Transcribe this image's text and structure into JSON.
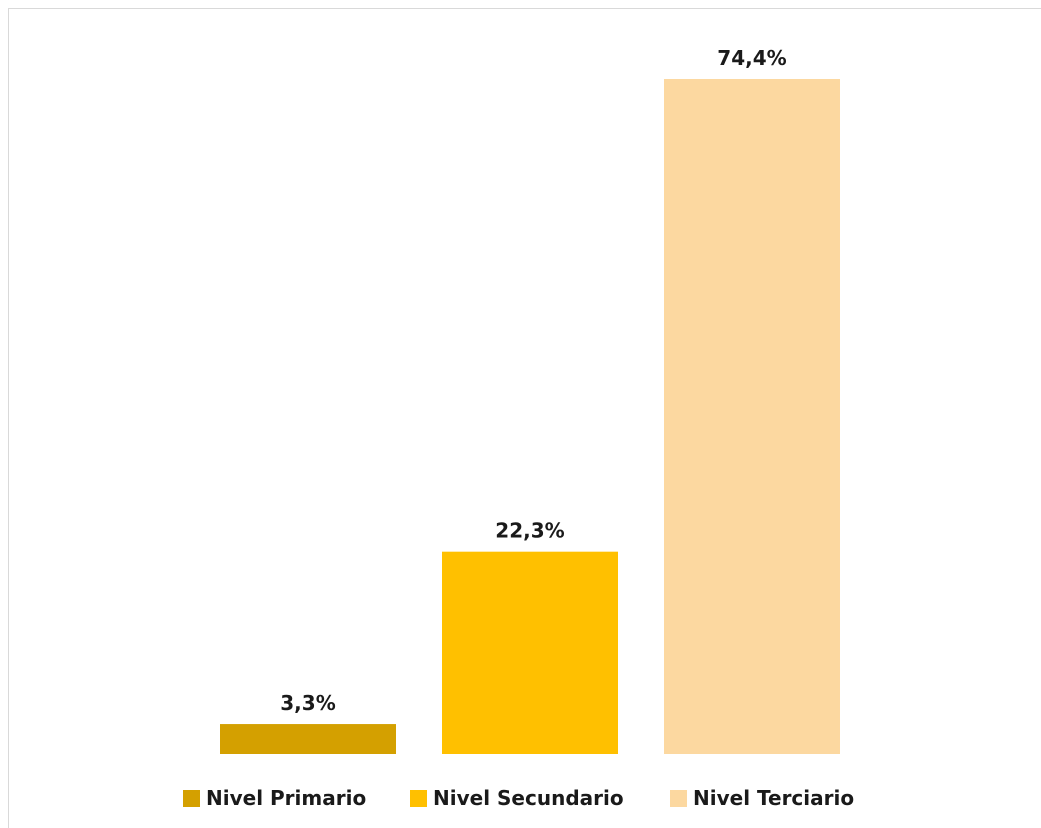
{
  "chart_data": {
    "type": "bar",
    "categories": [
      "Nivel Primario",
      "Nivel Secundario",
      "Nivel Terciario"
    ],
    "values": [
      3.3,
      22.3,
      74.4
    ],
    "data_labels": [
      "3,3%",
      "22,3%",
      "74,4%"
    ],
    "colors": [
      "#d4a000",
      "#ffc000",
      "#fcd8a0"
    ],
    "ylim": [
      0,
      74.4
    ],
    "grid": false,
    "legend": {
      "position": "bottom",
      "entries": [
        "Nivel Primario",
        "Nivel Secundario",
        "Nivel Terciario"
      ]
    },
    "title": "",
    "xlabel": "",
    "ylabel": ""
  }
}
